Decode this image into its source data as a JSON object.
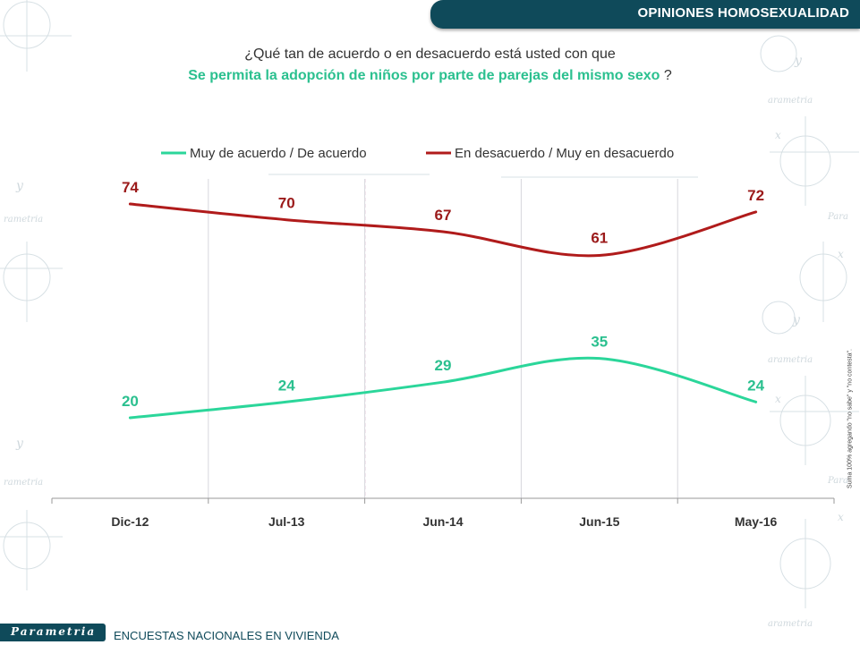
{
  "header": {
    "title": "OPINIONES HOMOSEXUALIDAD"
  },
  "question": {
    "line1": "¿Qué tan de acuerdo o en desacuerdo está usted con que",
    "highlight": "Se permita la adopción de niños por parte de parejas del mismo sexo",
    "suffix": " ?"
  },
  "chart_data": {
    "type": "line",
    "categories": [
      "Dic-12",
      "Jul-13",
      "Jun-14",
      "Jun-15",
      "May-16"
    ],
    "series": [
      {
        "name": "Muy de acuerdo / De acuerdo",
        "values": [
          20,
          24,
          29,
          35,
          24
        ],
        "color": "#2bd69a"
      },
      {
        "name": "En desacuerdo / Muy en desacuerdo",
        "values": [
          74,
          70,
          67,
          61,
          72
        ],
        "color": "#b01b1b"
      }
    ],
    "legend": "top",
    "grid": "vertical"
  },
  "side_note": "Suma 100% agregando \"no sabe\" y \"no contesta\".",
  "footer": {
    "brand": "Parametria",
    "text": "ENCUESTAS NACIONALES EN VIVIENDA"
  },
  "colors": {
    "header": "#0f4a5a",
    "highlight": "#2bc08f"
  }
}
